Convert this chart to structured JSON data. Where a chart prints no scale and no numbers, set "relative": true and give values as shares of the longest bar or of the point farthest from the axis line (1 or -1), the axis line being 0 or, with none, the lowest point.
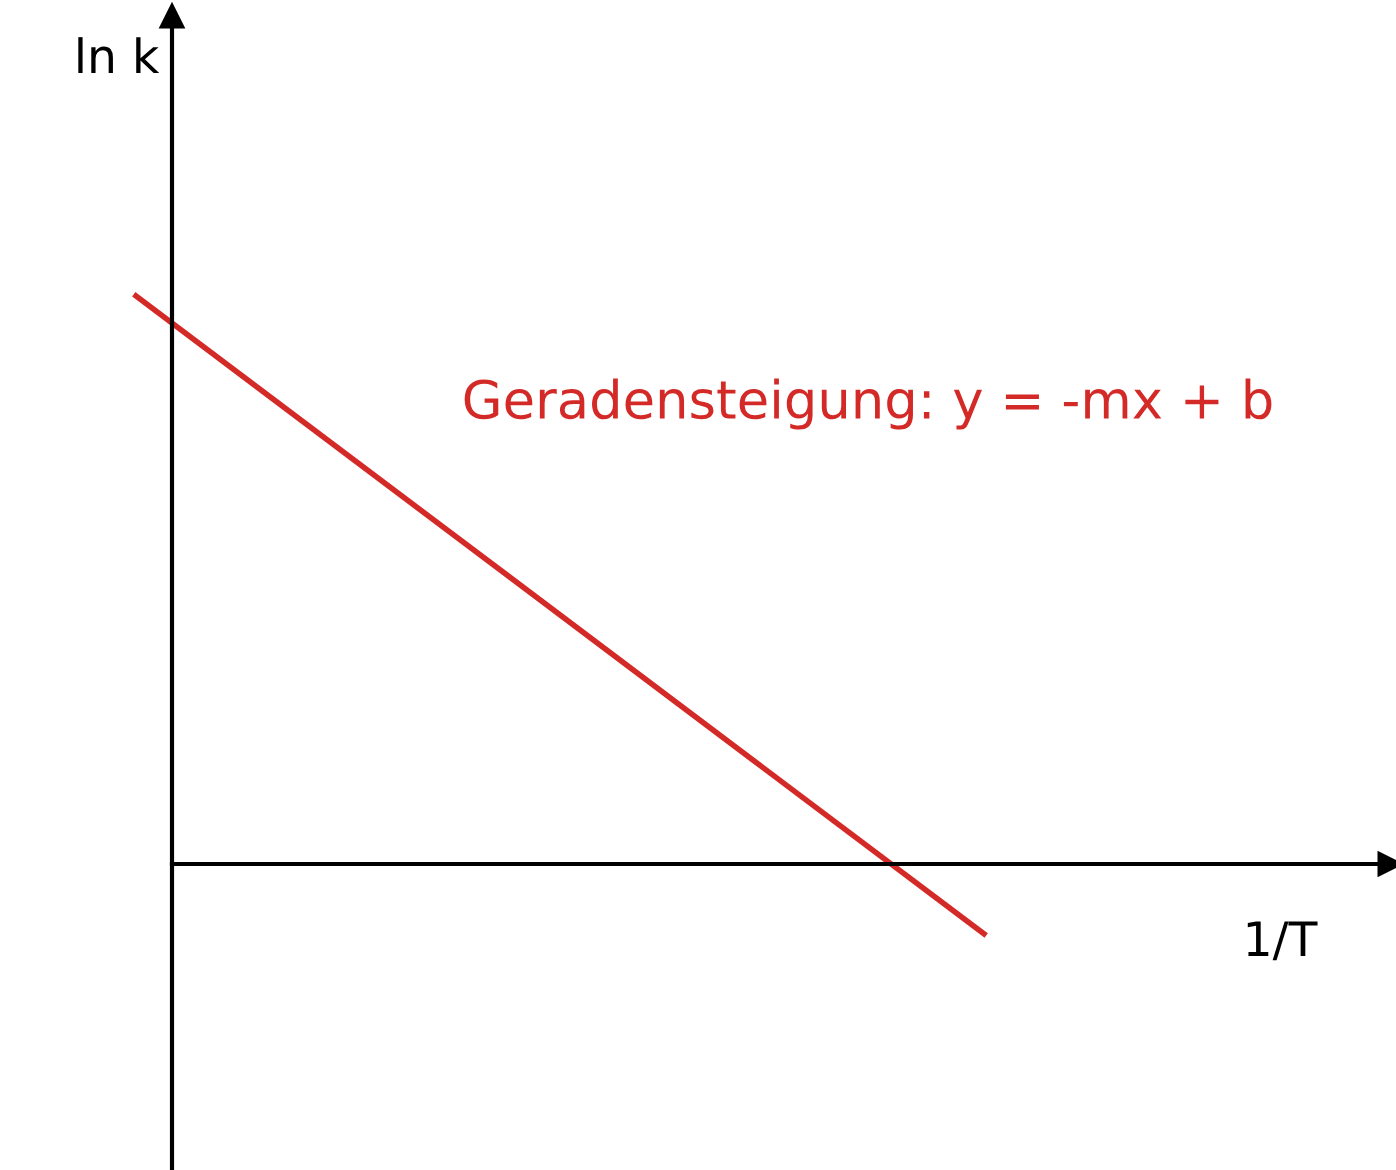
{
  "chart_data": {
    "type": "line",
    "relative": true,
    "xlabel": "1/T",
    "ylabel": "ln k",
    "categories": [
      null,
      null
    ],
    "series": [
      {
        "color": "#d42a27",
        "values": [
          1,
          -0.123
        ]
      }
    ],
    "annotations": [
      "Geradensteigung: y = -mx + b"
    ],
    "marker": "none",
    "line_style": "solid"
  }
}
